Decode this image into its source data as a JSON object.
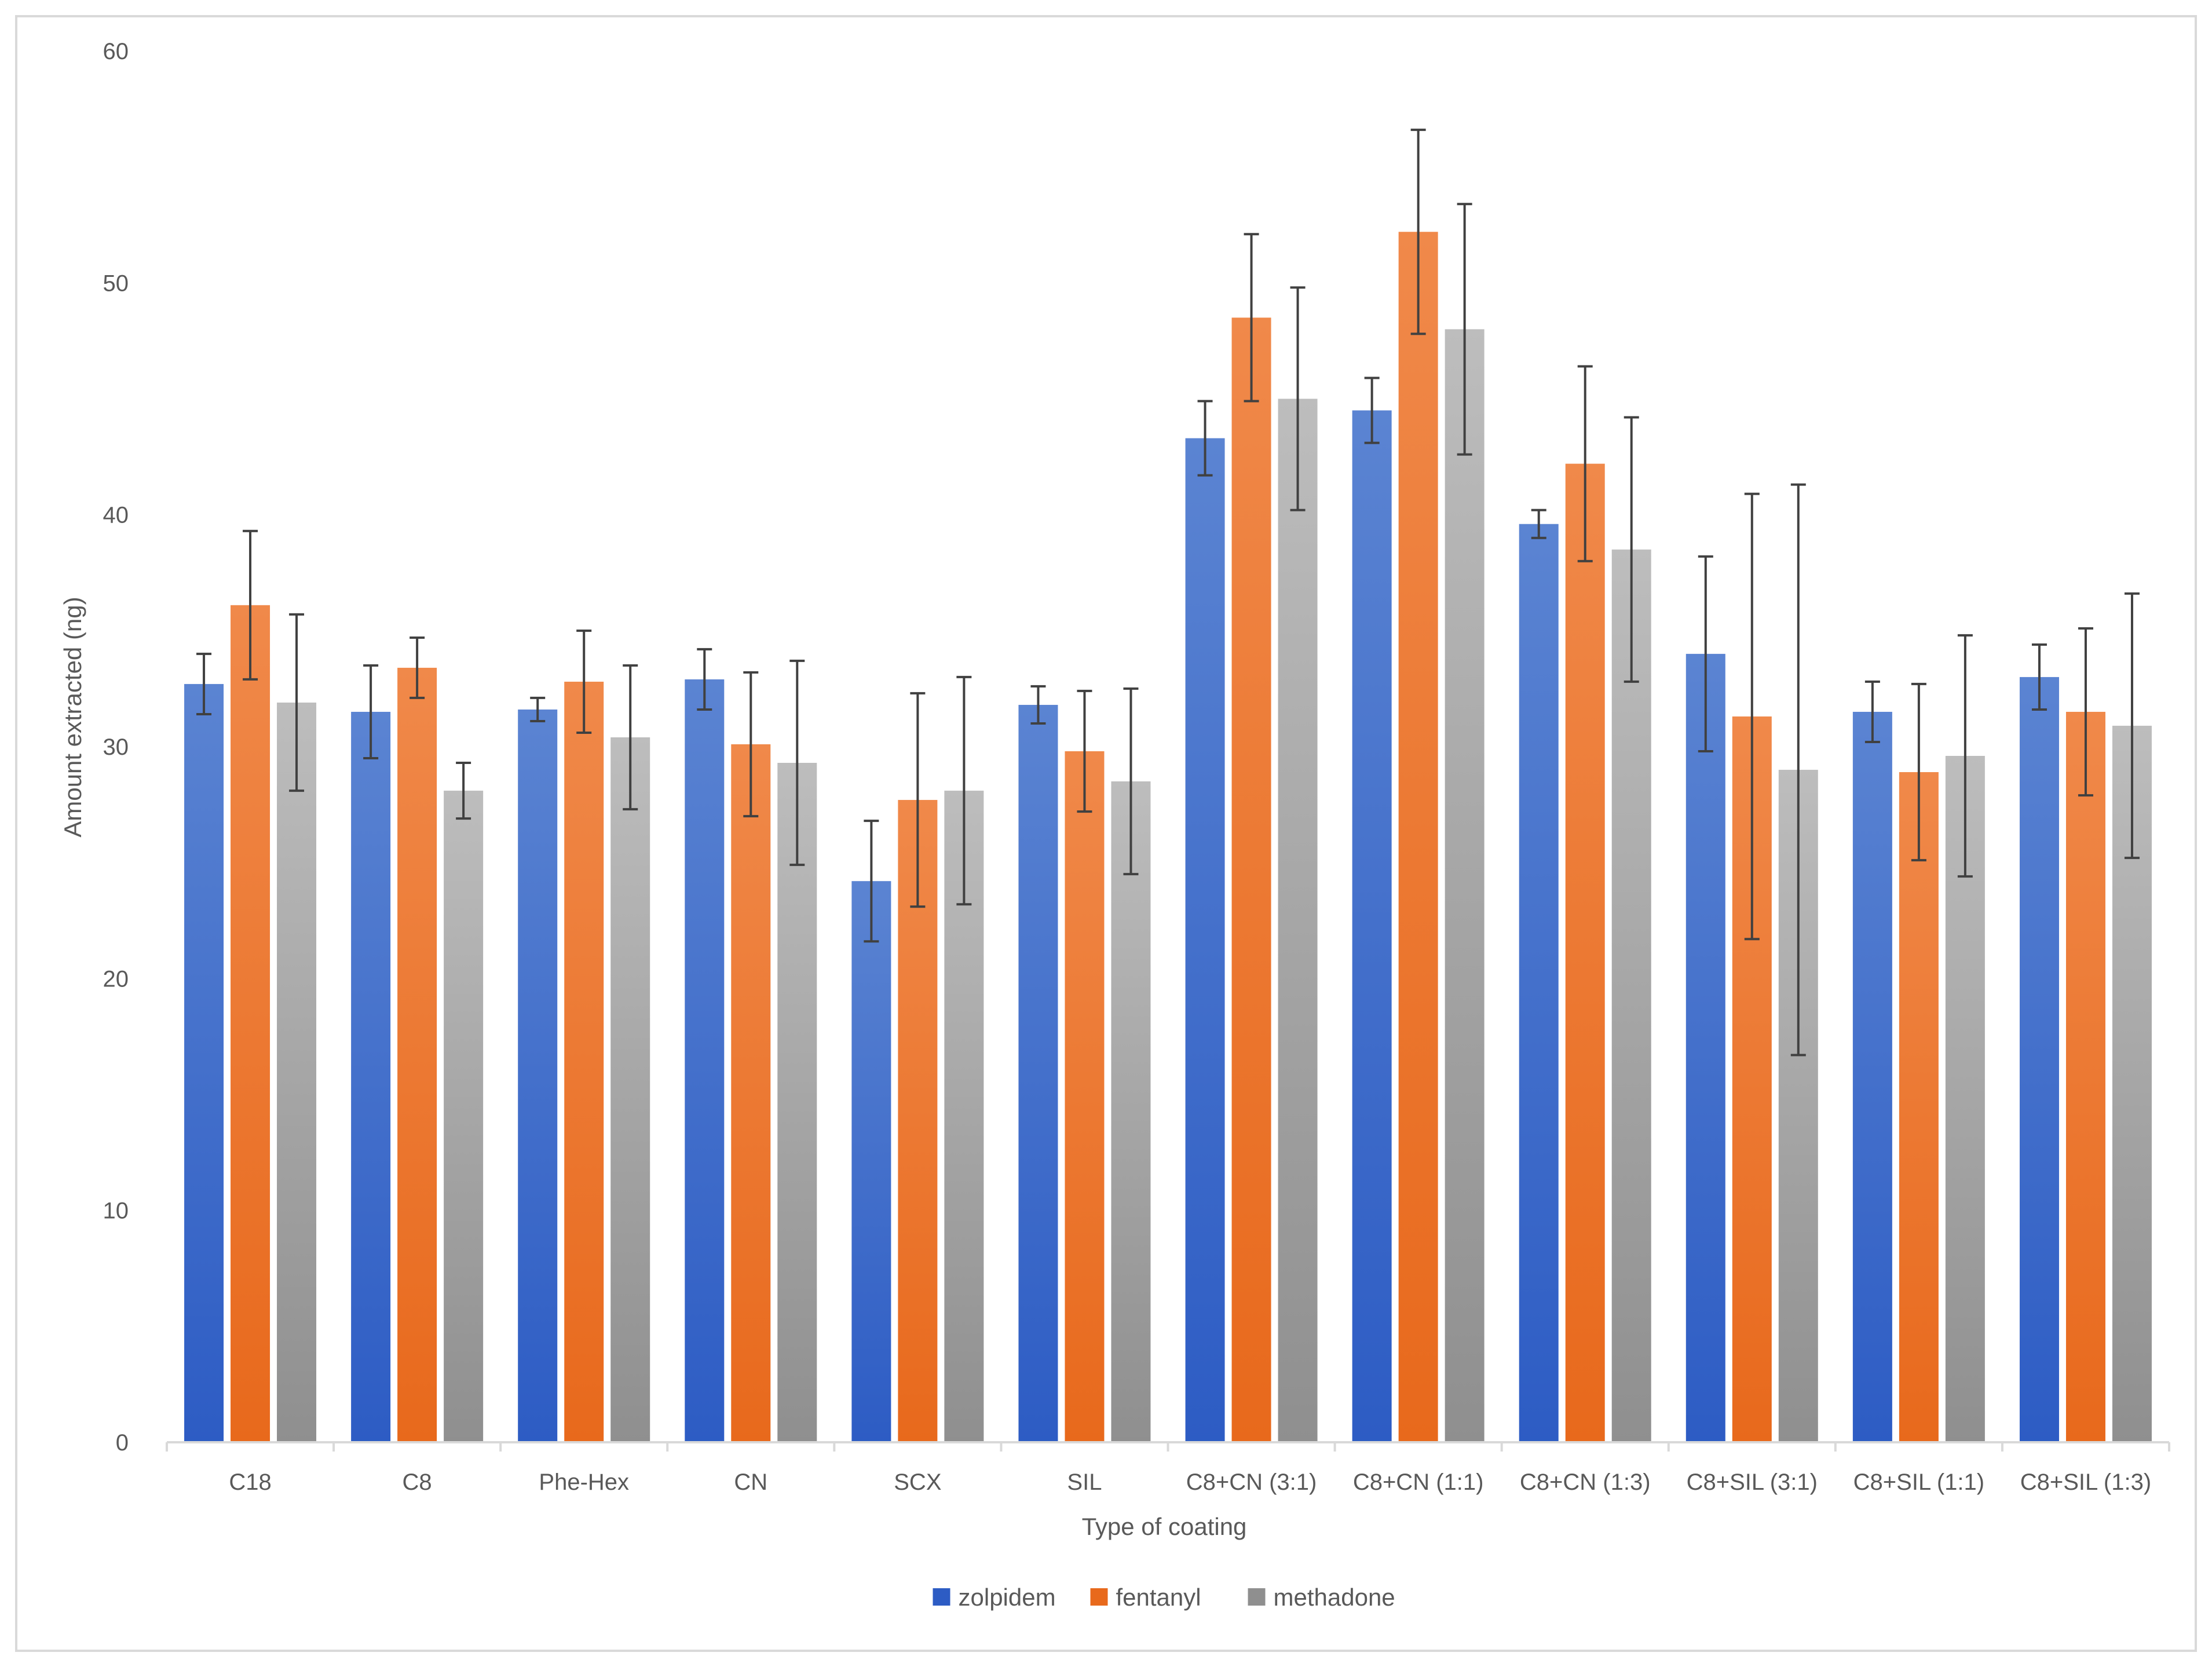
{
  "chart_data": {
    "type": "bar",
    "title": "",
    "xlabel": "Type of coating",
    "ylabel": "Amount extracted (ng)",
    "ylim": [
      0,
      60
    ],
    "yticks": [
      0,
      10,
      20,
      30,
      40,
      50,
      60
    ],
    "grid": false,
    "legend_position": "bottom",
    "categories": [
      "C18",
      "C8",
      "Phe-Hex",
      "CN",
      "SCX",
      "SIL",
      "C8+CN (3:1)",
      "C8+CN (1:1)",
      "C8+CN (1:3)",
      "C8+SIL (3:1)",
      "C8+SIL (1:1)",
      "C8+SIL (1:3)"
    ],
    "series": [
      {
        "name": "zolpidem",
        "color_top": "#5b84d2",
        "color_bottom": "#2d5cc4",
        "values": [
          32.7,
          31.5,
          31.6,
          32.9,
          24.2,
          31.8,
          43.3,
          44.5,
          39.6,
          34.0,
          31.5,
          33.0
        ],
        "errors": [
          1.3,
          2.0,
          0.5,
          1.3,
          2.6,
          0.8,
          1.6,
          1.4,
          0.6,
          4.2,
          1.3,
          1.4
        ]
      },
      {
        "name": "fentanyl",
        "color_top": "#f0894a",
        "color_bottom": "#e8691c",
        "values": [
          36.1,
          33.4,
          32.8,
          30.1,
          27.7,
          29.8,
          48.5,
          52.2,
          42.2,
          31.3,
          28.9,
          31.5
        ],
        "errors": [
          3.2,
          1.3,
          2.2,
          3.1,
          4.6,
          2.6,
          3.6,
          4.4,
          4.2,
          9.6,
          3.8,
          3.6
        ]
      },
      {
        "name": "methadone",
        "color_top": "#bdbdbd",
        "color_bottom": "#8f8f8f",
        "values": [
          31.9,
          28.1,
          30.4,
          29.3,
          28.1,
          28.5,
          45.0,
          48.0,
          38.5,
          29.0,
          29.6,
          30.9
        ],
        "errors": [
          3.8,
          1.2,
          3.1,
          4.4,
          4.9,
          4.0,
          4.8,
          5.4,
          5.7,
          12.3,
          5.2,
          5.7
        ]
      }
    ]
  }
}
